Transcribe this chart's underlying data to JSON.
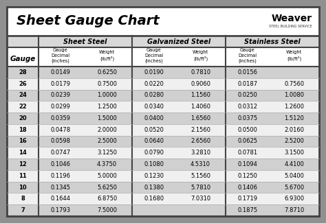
{
  "title": "Sheet Gauge Chart",
  "bg_outer": "#909090",
  "bg_inner": "#f2f2f2",
  "bg_title": "#ffffff",
  "bg_section_header": "#d8d8d8",
  "bg_sub_header": "#ffffff",
  "bg_row_odd": "#d0d0d0",
  "bg_row_even": "#f0f0f0",
  "gauges": [
    28,
    26,
    24,
    22,
    20,
    18,
    16,
    14,
    12,
    11,
    10,
    8,
    7
  ],
  "sheet_steel_dec": [
    "0.0149",
    "0.0179",
    "0.0239",
    "0.0299",
    "0.0359",
    "0.0478",
    "0.0598",
    "0.0747",
    "0.1046",
    "0.1196",
    "0.1345",
    "0.1644",
    "0.1793"
  ],
  "sheet_steel_wt": [
    "0.6250",
    "0.7500",
    "1.0000",
    "1.2500",
    "1.5000",
    "2.0000",
    "2.5000",
    "3.1250",
    "4.3750",
    "5.0000",
    "5.6250",
    "6.8750",
    "7.5000"
  ],
  "galv_dec": [
    "0.0190",
    "0.0220",
    "0.0280",
    "0.0340",
    "0.0400",
    "0.0520",
    "0.0640",
    "0.0790",
    "0.1080",
    "0.1230",
    "0.1380",
    "0.1680",
    ""
  ],
  "galv_wt": [
    "0.7810",
    "0.9060",
    "1.1560",
    "1.4060",
    "1.6560",
    "2.1560",
    "2.6560",
    "3.2810",
    "4.5310",
    "5.1560",
    "5.7810",
    "7.0310",
    ""
  ],
  "stain_dec": [
    "0.0156",
    "0.0187",
    "0.0250",
    "0.0312",
    "0.0375",
    "0.0500",
    "0.0625",
    "0.0781",
    "0.1094",
    "0.1250",
    "0.1406",
    "0.1719",
    "0.1875"
  ],
  "stain_wt": [
    "",
    "0.7560",
    "1.0080",
    "1.2600",
    "1.5120",
    "2.0160",
    "2.5200",
    "3.1500",
    "4.4100",
    "5.0400",
    "5.6700",
    "6.9300",
    "7.8710"
  ],
  "border_color": "#555555",
  "grid_color": "#aaaaaa",
  "strong_border": "#444444"
}
